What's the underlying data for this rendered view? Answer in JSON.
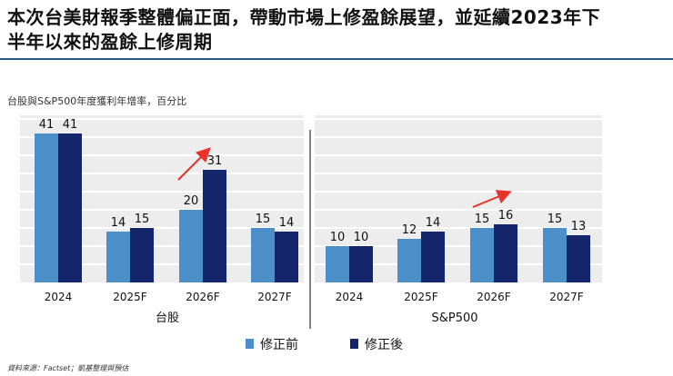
{
  "headline": {
    "line1": "本次台美財報季整體偏正面，帶動市場上修盈餘展望，並延續2023年下",
    "line2": "半年以來的盈餘上修周期"
  },
  "source": "資料來源：Factset；凱基整理與預估",
  "colors": {
    "before": "#4d8fc9",
    "after": "#14256b",
    "arrow": "#e8322a",
    "panel": "#ededed",
    "grid": "#ffffff"
  },
  "chart_data": {
    "type": "bar",
    "title": "台股與S&P500年度獲利年增率，百分比",
    "ylim": [
      0,
      45
    ],
    "grid": true,
    "legend_position": "bottom-center",
    "panels": [
      {
        "name": "台股",
        "categories": [
          "2024",
          "2025F",
          "2026F",
          "2027F"
        ],
        "series": [
          {
            "name": "修正前",
            "values": [
              41,
              14,
              20,
              15
            ]
          },
          {
            "name": "修正後",
            "values": [
              41,
              15,
              31,
              14
            ]
          }
        ],
        "annotation": "upward arrow above 2026F"
      },
      {
        "name": "S&P500",
        "categories": [
          "2024",
          "2025F",
          "2026F",
          "2027F"
        ],
        "series": [
          {
            "name": "修正前",
            "values": [
              10,
              12,
              15,
              15
            ]
          },
          {
            "name": "修正後",
            "values": [
              10,
              14,
              16,
              13
            ]
          }
        ],
        "annotation": "upward arrow above 2026F"
      }
    ],
    "legend": [
      "修正前",
      "修正後"
    ]
  }
}
